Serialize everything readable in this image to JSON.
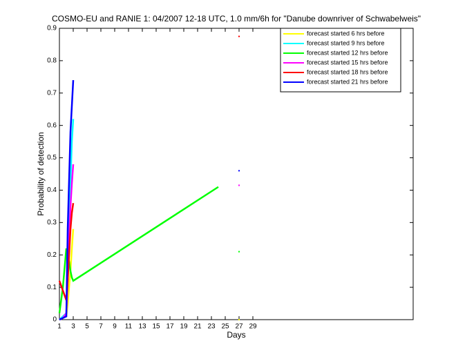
{
  "chart_data": {
    "type": "line",
    "title": "COSMO-EU and RANIE 1: 04/2007 12-18 UTC, 1.0 mm/6h for \"Danube downriver of Schwabelweis\"",
    "x_label": "Days",
    "y_label": "Probability of detection",
    "x": [
      1,
      1.5,
      2,
      2.2,
      2.4,
      2.6,
      2.8,
      3,
      24,
      25,
      27
    ],
    "series": [
      {
        "name": "forecast started 6 hrs before",
        "color": "#ffff00",
        "values": [
          0,
          0.005,
          0.01,
          0.05,
          0.1,
          0.15,
          0.22,
          0.28,
          null,
          null,
          0
        ]
      },
      {
        "name": "forecast started 9 hrs before",
        "color": "#00ffff",
        "values": [
          0,
          0.01,
          0.02,
          0.15,
          0.3,
          0.42,
          0.55,
          0.62,
          null,
          null,
          null
        ]
      },
      {
        "name": "forecast started 12 hrs before",
        "color": "#00ff00",
        "values": [
          0.02,
          0.1,
          0.22,
          0.2,
          0.18,
          0.15,
          0.13,
          0.12,
          0.41,
          null,
          0.21
        ]
      },
      {
        "name": "forecast started 15 hrs before",
        "color": "#ff00ff",
        "values": [
          0,
          0.005,
          0.02,
          0.12,
          0.25,
          0.35,
          0.42,
          0.48,
          null,
          null,
          0.415
        ]
      },
      {
        "name": "forecast started 18 hrs before",
        "color": "#ff0000",
        "values": [
          0.12,
          0.09,
          0.06,
          0.12,
          0.2,
          0.28,
          0.33,
          0.36,
          null,
          null,
          0.875
        ]
      },
      {
        "name": "forecast started 21 hrs before",
        "color": "#0000ff",
        "values": [
          0,
          0.005,
          0.01,
          0.28,
          0.43,
          0.58,
          0.66,
          0.74,
          null,
          null,
          0.46
        ]
      }
    ],
    "xlim": [
      1,
      52.2
    ],
    "ylim": [
      0,
      0.9
    ],
    "xticks": [
      1,
      3,
      5,
      7,
      9,
      11,
      13,
      15,
      17,
      19,
      21,
      23,
      25,
      27,
      29
    ],
    "yticks": [
      0,
      0.1,
      0.2,
      0.3,
      0.4,
      0.5,
      0.6,
      0.7,
      0.8,
      0.9
    ],
    "legend": "top-right"
  }
}
